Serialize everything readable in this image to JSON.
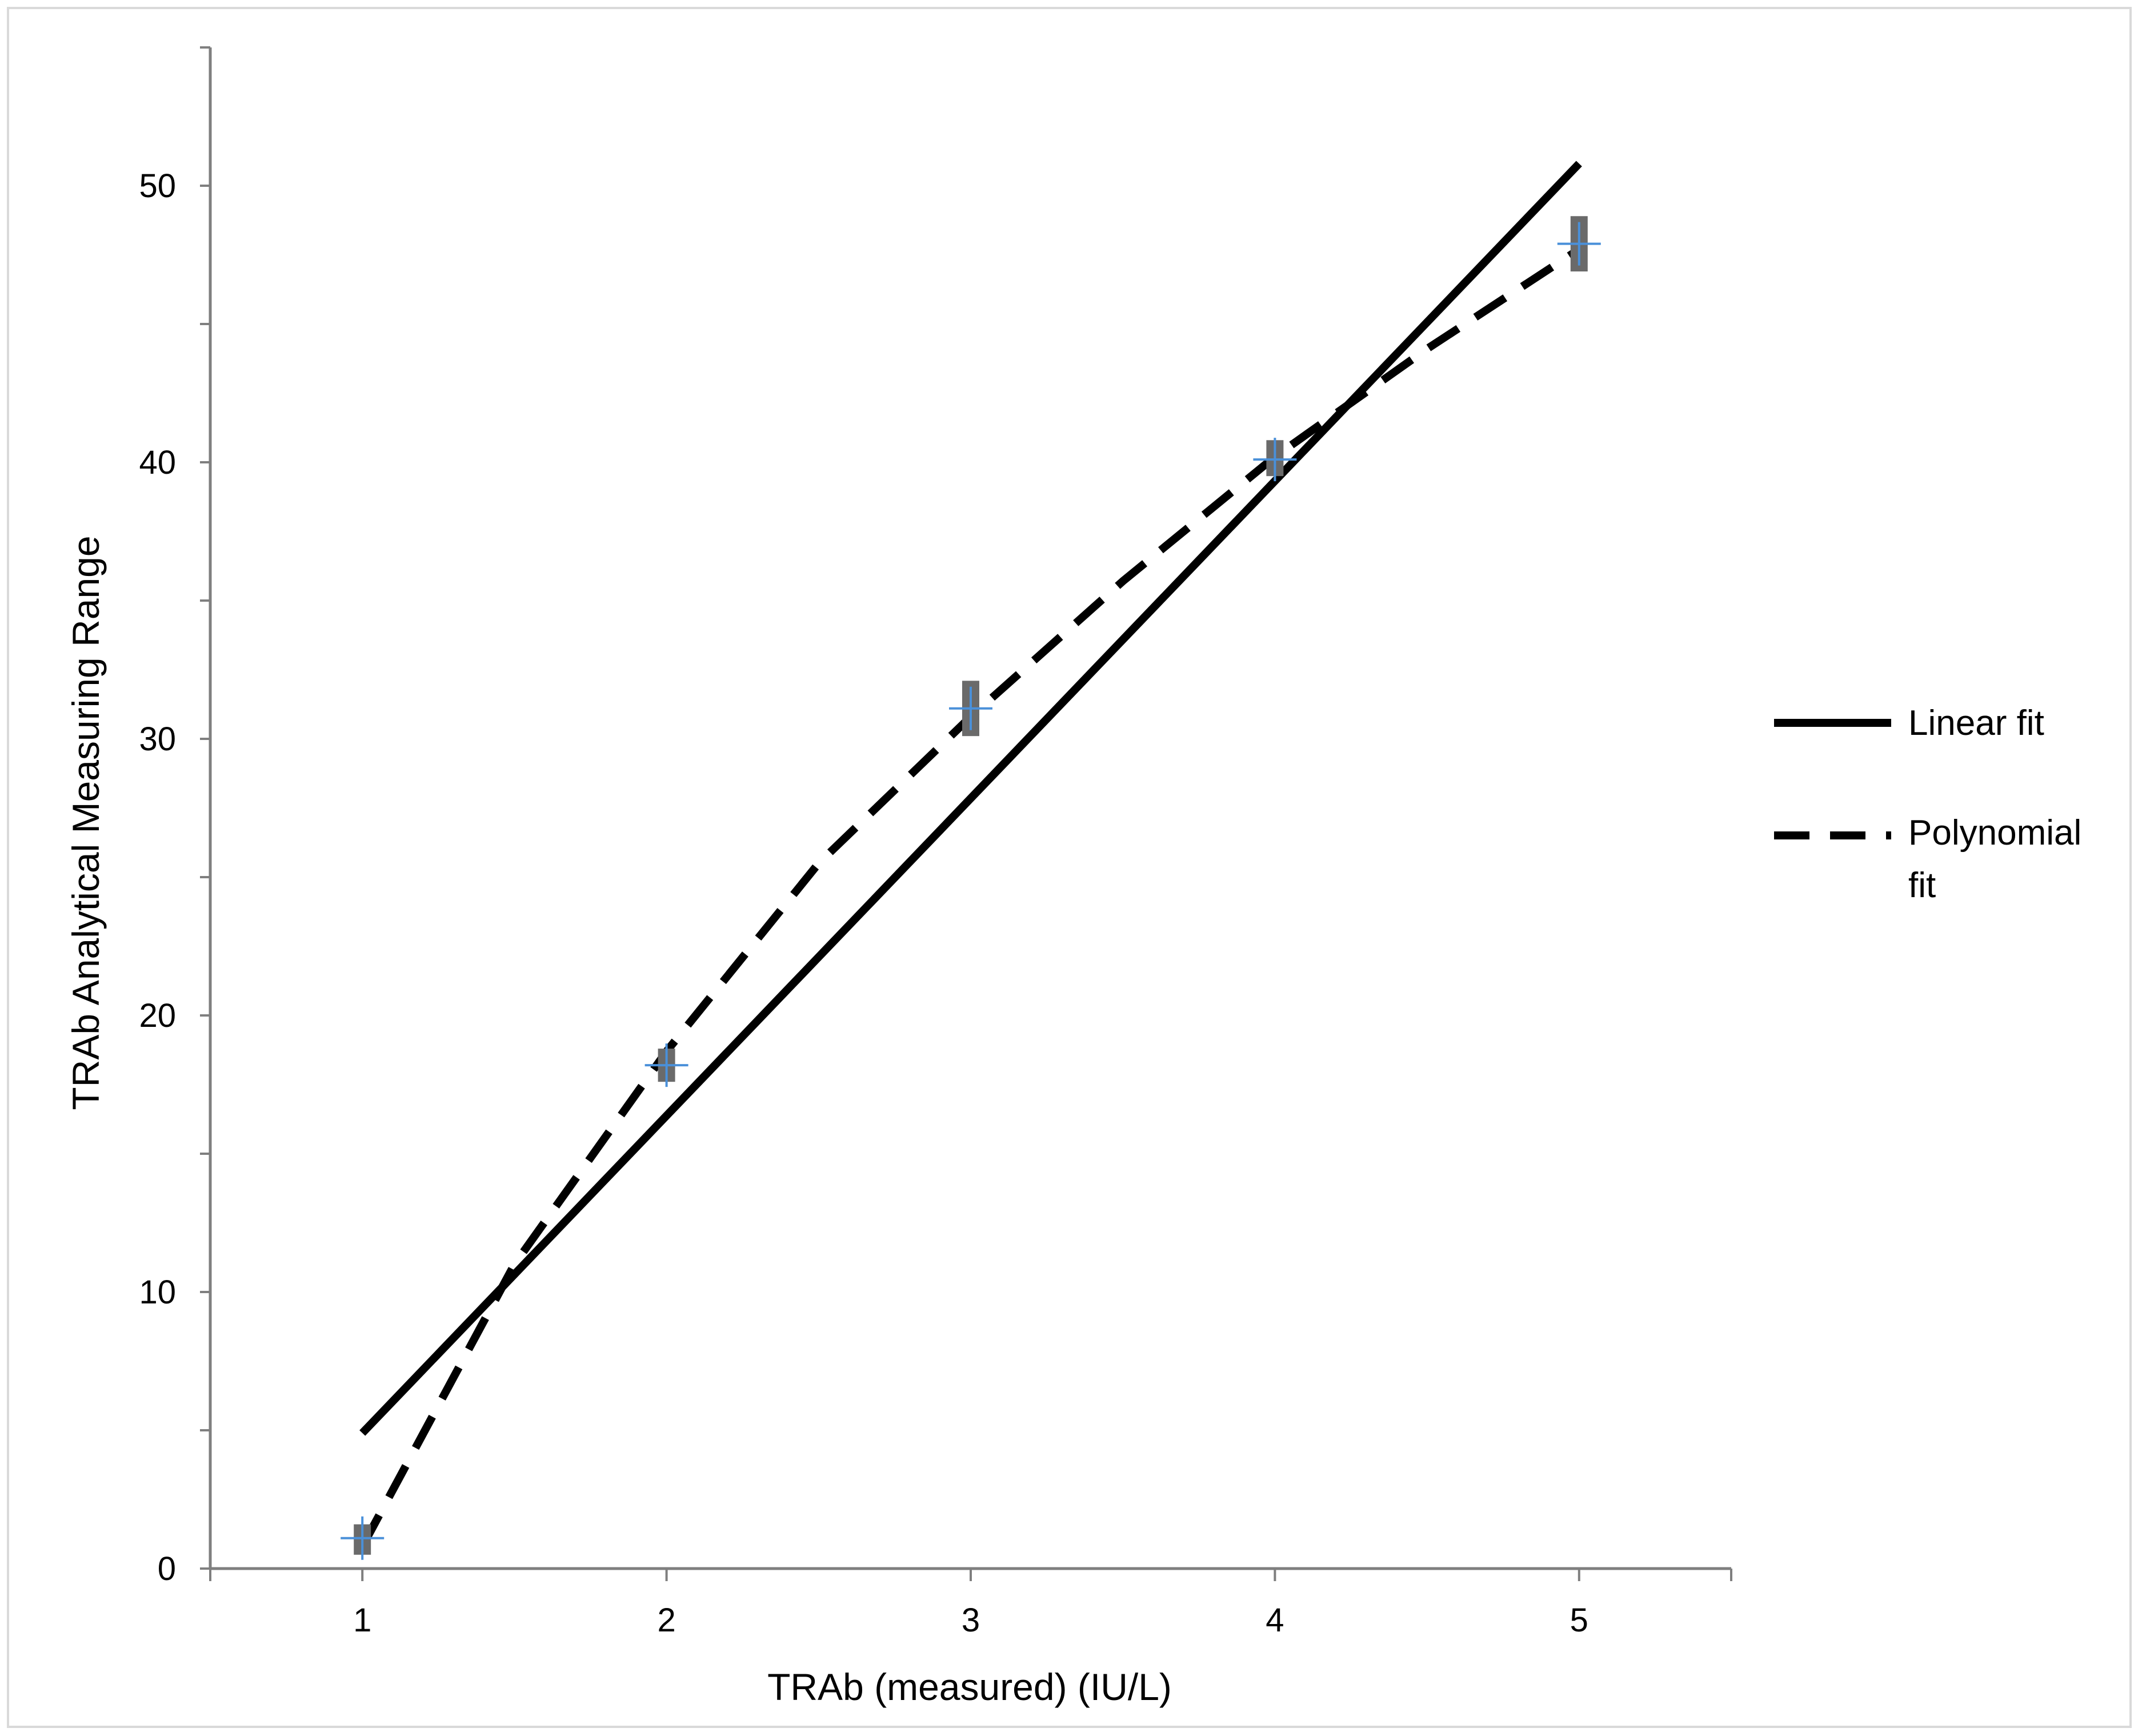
{
  "chart_data": {
    "type": "scatter",
    "title": "",
    "xlabel": "TRAb (measured) (IU/L)",
    "ylabel": "TRAb Analytical Measuring Range",
    "xlim": [
      0.5,
      5.5
    ],
    "ylim": [
      0,
      55
    ],
    "x_ticks": [
      1,
      2,
      3,
      4,
      5
    ],
    "y_ticks": [
      0,
      10,
      20,
      30,
      40,
      50
    ],
    "grid": false,
    "legend_position": "right",
    "points": {
      "x": [
        1,
        2,
        3,
        4,
        5
      ],
      "y": [
        1.1,
        18.2,
        31.1,
        40.1,
        47.9
      ],
      "y_low": [
        0.5,
        17.6,
        30.1,
        39.5,
        46.9
      ],
      "y_high": [
        1.6,
        18.8,
        32.1,
        40.8,
        48.9
      ],
      "marker_color": "#6a6a6a",
      "crosshair_color": "#4a90d9"
    },
    "series": [
      {
        "name": "Linear fit",
        "style": "solid",
        "x": [
          1,
          5
        ],
        "y": [
          4.9,
          50.8
        ]
      },
      {
        "name": "Polynomial fit",
        "style": "dashed",
        "x": [
          1,
          1.5,
          2,
          2.5,
          3,
          3.5,
          4,
          4.5,
          5
        ],
        "y": [
          0.8,
          11.0,
          18.7,
          25.5,
          30.8,
          35.7,
          40.2,
          44.1,
          47.7
        ]
      }
    ]
  }
}
